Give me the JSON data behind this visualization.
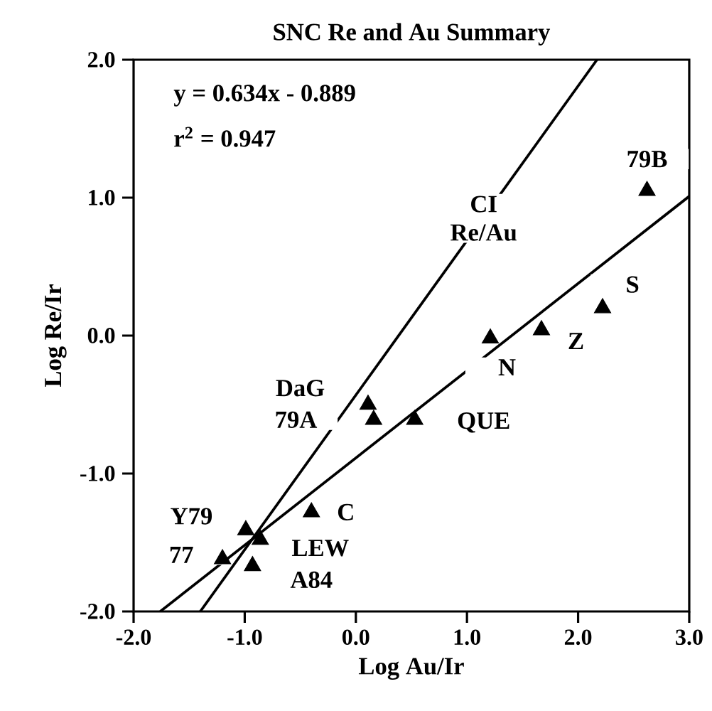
{
  "chart_data": {
    "type": "scatter",
    "title": "SNC Re and Au Summary",
    "xlabel": "Log Au/Ir",
    "ylabel": "Log Re/Ir",
    "xlim": [
      -2,
      3
    ],
    "ylim": [
      -2,
      2
    ],
    "xticks": [
      {
        "value": -2,
        "label": "-2.0"
      },
      {
        "value": -1,
        "label": "-1.0"
      },
      {
        "value": 0,
        "label": "0.0"
      },
      {
        "value": 1,
        "label": "1.0"
      },
      {
        "value": 2,
        "label": "2.0"
      },
      {
        "value": 3,
        "label": "3.0"
      }
    ],
    "yticks": [
      {
        "value": -2,
        "label": "-2.0"
      },
      {
        "value": -1,
        "label": "-1.0"
      },
      {
        "value": 0,
        "label": "0.0"
      },
      {
        "value": 1,
        "label": "1.0"
      },
      {
        "value": 2,
        "label": "2.0"
      }
    ],
    "grid": false,
    "series": [
      {
        "type": "scatter",
        "color": "#000000",
        "marker": "triangle",
        "x": [
          2.62,
          2.22,
          1.67,
          1.21,
          0.53,
          0.11,
          0.16,
          -0.4,
          -0.99,
          -0.86,
          -1.2,
          -0.93
        ],
        "values": [
          1.05,
          0.2,
          0.04,
          -0.02,
          -0.61,
          -0.5,
          -0.61,
          -1.28,
          -1.41,
          -1.48,
          -1.62,
          -1.67
        ]
      },
      {
        "type": "line",
        "color": "#000000",
        "line_style": "solid",
        "marker": "none",
        "x": [
          -1.76,
          3.0
        ],
        "values": [
          -2.0,
          1.01
        ]
      },
      {
        "type": "line",
        "color": "#000000",
        "line_style": "solid",
        "marker": "none",
        "x": [
          -1.4,
          2.17
        ],
        "values": [
          -2.0,
          2.0
        ]
      }
    ],
    "annotations": [
      "y  =  0.634x  -  0.889",
      "r$^{2}$  =  0.947",
      {
        "text": "79B",
        "x": 2.62,
        "y": 1.05
      },
      {
        "text": "S",
        "x": 2.22,
        "y": 0.2
      },
      {
        "text": "Z",
        "x": 1.67,
        "y": 0.04
      },
      {
        "text": "N",
        "x": 1.21,
        "y": -0.02
      },
      {
        "text": "QUE",
        "x": 0.53,
        "y": -0.61
      },
      {
        "text": "DaG",
        "x": 0.11,
        "y": -0.5
      },
      {
        "text": "79A",
        "x": 0.16,
        "y": -0.61
      },
      {
        "text": "C",
        "x": -0.4,
        "y": -1.28
      },
      {
        "text": "Y79",
        "x": -0.99,
        "y": -1.41
      },
      {
        "text": "LEW",
        "x": -0.86,
        "y": -1.48
      },
      {
        "text": "77",
        "x": -1.2,
        "y": -1.62
      },
      {
        "text": "A84",
        "x": -0.93,
        "y": -1.67
      },
      {
        "text": "CI Re/Au",
        "x": 1.15,
        "y": 0.85
      }
    ]
  }
}
